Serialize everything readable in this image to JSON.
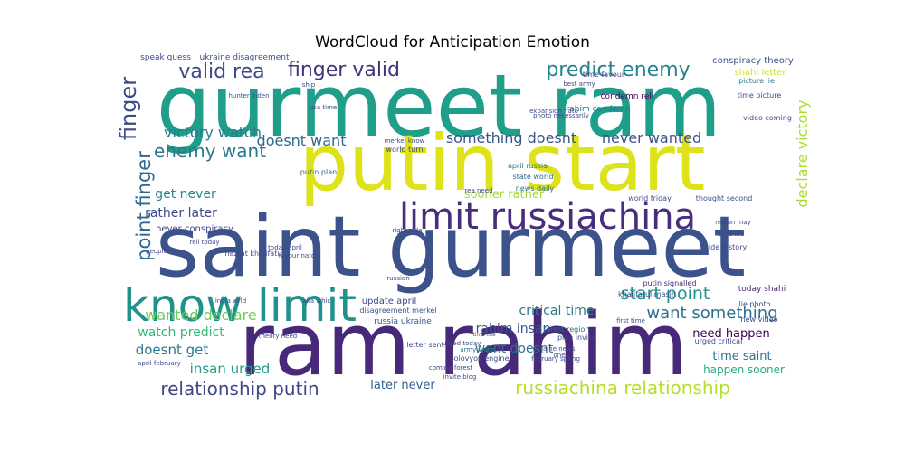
{
  "chart_data": {
    "type": "wordcloud",
    "title": "WordCloud for Anticipation Emotion",
    "words": [
      {
        "text": "gurmeet ram",
        "color": "#1f9e89"
      },
      {
        "text": "putin start",
        "color": "#dde318"
      },
      {
        "text": "saint gurmeet",
        "color": "#3b528b"
      },
      {
        "text": "ram rahim",
        "color": "#482878"
      },
      {
        "text": "know limit",
        "color": "#21918c"
      },
      {
        "text": "limit russiachina",
        "color": "#472d7b"
      },
      {
        "text": "finger valid",
        "color": "#46337e"
      },
      {
        "text": "predict enemy",
        "color": "#26828e"
      },
      {
        "text": "valid rea",
        "color": "#3e4989"
      },
      {
        "text": "point finger",
        "color": "#31688e"
      },
      {
        "text": "finger",
        "color": "#3e4989"
      },
      {
        "text": "enemy want",
        "color": "#2a788e"
      },
      {
        "text": "victory watch",
        "color": "#287c8e"
      },
      {
        "text": "doesnt want",
        "color": "#31688e"
      },
      {
        "text": "something doesnt",
        "color": "#3a548c"
      },
      {
        "text": "never wanted",
        "color": "#3b528b"
      },
      {
        "text": "declare victory",
        "color": "#addc30"
      },
      {
        "text": "get never",
        "color": "#25858e"
      },
      {
        "text": "rather later",
        "color": "#3e4989"
      },
      {
        "text": "never conspiracy",
        "color": "#414487"
      },
      {
        "text": "wanted declare",
        "color": "#6ccd5a"
      },
      {
        "text": "watch predict",
        "color": "#35b779"
      },
      {
        "text": "doesnt get",
        "color": "#2a788e"
      },
      {
        "text": "insan urged",
        "color": "#1f9e89"
      },
      {
        "text": "relationship putin",
        "color": "#3e4989"
      },
      {
        "text": "russiachina relationship",
        "color": "#b5de2b"
      },
      {
        "text": "start point",
        "color": "#21918c"
      },
      {
        "text": "want something",
        "color": "#2c728e"
      },
      {
        "text": "critical time",
        "color": "#2a788e"
      },
      {
        "text": "rahim insan",
        "color": "#3b528b"
      },
      {
        "text": "want doesnt",
        "color": "#2c728e"
      },
      {
        "text": "later never",
        "color": "#355f8d"
      },
      {
        "text": "sooner rather",
        "color": "#a0da39"
      },
      {
        "text": "need happen",
        "color": "#440154"
      },
      {
        "text": "time saint",
        "color": "#2c728e"
      },
      {
        "text": "happen sooner",
        "color": "#26ad81"
      },
      {
        "text": "conspiracy theory",
        "color": "#3b528b"
      },
      {
        "text": "shahi letter",
        "color": "#d0e11c"
      },
      {
        "text": "update april",
        "color": "#3e4989"
      },
      {
        "text": "russia ukraine",
        "color": "#3b528b"
      },
      {
        "text": "disagreement merkel",
        "color": "#39568c"
      },
      {
        "text": "today shahi",
        "color": "#482475"
      },
      {
        "text": "video coming",
        "color": "#3b528b"
      },
      {
        "text": "world friday",
        "color": "#3e4989"
      },
      {
        "text": "thought second",
        "color": "#3b528b"
      },
      {
        "text": "news daily",
        "color": "#2d708e"
      },
      {
        "text": "state world",
        "color": "#31688e"
      },
      {
        "text": "april russia",
        "color": "#2a788e"
      },
      {
        "text": "forest region",
        "color": "#31688e"
      },
      {
        "text": "letter sent",
        "color": "#3e4989"
      },
      {
        "text": "hunter biden",
        "color": "#3b528b"
      },
      {
        "text": "ukraine disagreement",
        "color": "#3b528b"
      },
      {
        "text": "speak guess",
        "color": "#3e4989"
      },
      {
        "text": "putin plan",
        "color": "#31688e"
      },
      {
        "text": "rahim condemn",
        "color": "#2a788e"
      },
      {
        "text": "condemn reli",
        "color": "#440154"
      },
      {
        "text": "time picture",
        "color": "#3e4989"
      },
      {
        "text": "picture lie",
        "color": "#2a788e"
      },
      {
        "text": "time favour",
        "color": "#3e4989"
      },
      {
        "text": "region may",
        "color": "#3e4989"
      },
      {
        "text": "time life",
        "color": "#3e4989"
      },
      {
        "text": "side history",
        "color": "#3e4989"
      },
      {
        "text": "khalifatul masih",
        "color": "#3e4989"
      },
      {
        "text": "putin signalled",
        "color": "#482878"
      },
      {
        "text": "lie photo",
        "color": "#3e4989"
      },
      {
        "text": "new video",
        "color": "#3e4989"
      },
      {
        "text": "urged critical",
        "color": "#3e4989"
      },
      {
        "text": "first time",
        "color": "#3e4989"
      },
      {
        "text": "plan invite",
        "color": "#3e4989"
      },
      {
        "text": "ukraine news",
        "color": "#3e4989"
      },
      {
        "text": "february spring",
        "color": "#3e4989"
      },
      {
        "text": "solovyov engine",
        "color": "#3e4989"
      },
      {
        "text": "urged today",
        "color": "#3e4989"
      },
      {
        "text": "army world",
        "color": "#2a788e"
      },
      {
        "text": "coming forest",
        "color": "#3e4989"
      },
      {
        "text": "invite blog",
        "color": "#3e4989"
      },
      {
        "text": "time tue",
        "color": "#3e4989"
      },
      {
        "text": "theory need",
        "color": "#3e4989"
      },
      {
        "text": "april february",
        "color": "#3e4989"
      },
      {
        "text": "india wrld",
        "color": "#3e4989"
      },
      {
        "text": "aka whic",
        "color": "#3e4989"
      },
      {
        "text": "reli today",
        "color": "#3e4989"
      },
      {
        "text": "today april",
        "color": "#3e4989"
      },
      {
        "text": "hazrat khalifatul",
        "color": "#3e4989"
      },
      {
        "text": "favour nato",
        "color": "#3e4989"
      },
      {
        "text": "right side",
        "color": "#3e4989"
      },
      {
        "text": "rea need",
        "color": "#3e4989"
      },
      {
        "text": "world turn",
        "color": "#3e4989"
      },
      {
        "text": "merkel know",
        "color": "#3e4989"
      },
      {
        "text": "usa time",
        "color": "#3e4989"
      },
      {
        "text": "photo necessarily",
        "color": "#3e4989"
      },
      {
        "text": "best army",
        "color": "#3e4989"
      },
      {
        "text": "expansion nato",
        "color": "#3e4989"
      },
      {
        "text": "people",
        "color": "#3e4989"
      },
      {
        "text": "russian",
        "color": "#3e4989"
      },
      {
        "text": "ship",
        "color": "#3e4989"
      },
      {
        "text": "one",
        "color": "#3e4989"
      }
    ]
  }
}
